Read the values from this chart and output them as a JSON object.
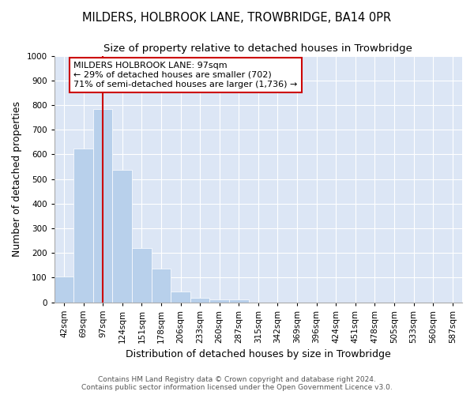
{
  "title": "MILDERS, HOLBROOK LANE, TROWBRIDGE, BA14 0PR",
  "subtitle": "Size of property relative to detached houses in Trowbridge",
  "xlabel": "Distribution of detached houses by size in Trowbridge",
  "ylabel": "Number of detached properties",
  "categories": [
    "42sqm",
    "69sqm",
    "97sqm",
    "124sqm",
    "151sqm",
    "178sqm",
    "206sqm",
    "233sqm",
    "260sqm",
    "287sqm",
    "315sqm",
    "342sqm",
    "369sqm",
    "396sqm",
    "424sqm",
    "451sqm",
    "478sqm",
    "505sqm",
    "533sqm",
    "560sqm",
    "587sqm"
  ],
  "values": [
    103,
    625,
    783,
    537,
    220,
    135,
    43,
    17,
    12,
    10,
    0,
    0,
    0,
    0,
    0,
    0,
    0,
    0,
    0,
    0,
    0
  ],
  "bar_color": "#b8d0eb",
  "bar_edge_color": "#b8d0eb",
  "vline_x_index": 2,
  "vline_color": "#cc0000",
  "annotation_line1": "MILDERS HOLBROOK LANE: 97sqm",
  "annotation_line2": "← 29% of detached houses are smaller (702)",
  "annotation_line3": "71% of semi-detached houses are larger (1,736) →",
  "annotation_box_color": "#ffffff",
  "annotation_box_edge_color": "#cc0000",
  "ylim": [
    0,
    1000
  ],
  "yticks": [
    0,
    100,
    200,
    300,
    400,
    500,
    600,
    700,
    800,
    900,
    1000
  ],
  "plot_bg_color": "#dce6f5",
  "fig_bg_color": "#ffffff",
  "footer_text": "Contains HM Land Registry data © Crown copyright and database right 2024.\nContains public sector information licensed under the Open Government Licence v3.0.",
  "title_fontsize": 10.5,
  "subtitle_fontsize": 9.5,
  "tick_fontsize": 7.5,
  "ylabel_fontsize": 9,
  "xlabel_fontsize": 9,
  "footer_fontsize": 6.5
}
